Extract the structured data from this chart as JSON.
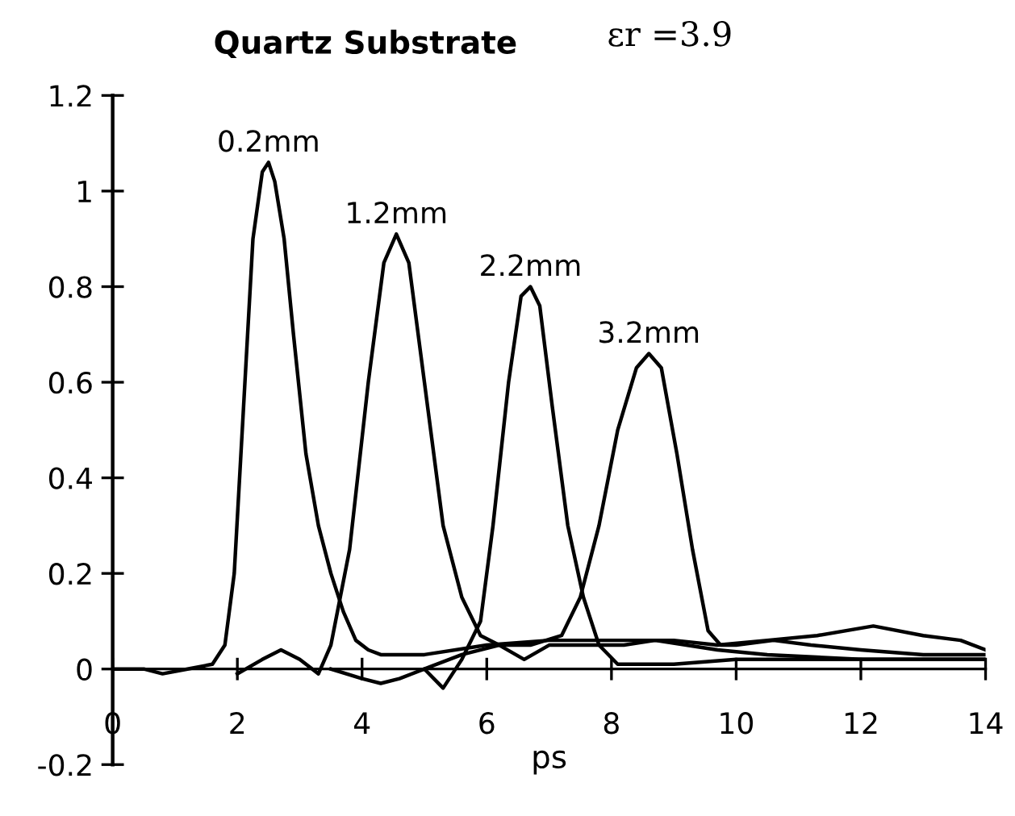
{
  "chart_data": {
    "type": "line",
    "title": "Quartz Substrate",
    "subtitle": "εr =3.9",
    "xlabel": "ps",
    "xlim": [
      0,
      14
    ],
    "ylim": [
      -0.2,
      1.2
    ],
    "xticks": [
      0,
      2,
      4,
      6,
      8,
      10,
      12,
      14
    ],
    "yticks": [
      -0.2,
      0,
      0.2,
      0.4,
      0.6,
      0.8,
      1,
      1.2
    ],
    "grid": false,
    "legend": false,
    "marker": "none",
    "line_style": "solid",
    "series": [
      {
        "name": "0.2mm",
        "color": "#000000",
        "x": [
          0,
          0.5,
          0.8,
          1.2,
          1.6,
          1.8,
          1.95,
          2.1,
          2.25,
          2.4,
          2.5,
          2.6,
          2.75,
          2.9,
          3.1,
          3.3,
          3.5,
          3.7,
          3.9,
          4.1,
          4.3,
          5,
          6,
          7,
          8,
          9,
          9.7,
          10.5,
          11.3,
          12.2,
          13,
          13.6,
          14
        ],
        "values": [
          0,
          0,
          -0.01,
          0,
          0.01,
          0.05,
          0.2,
          0.55,
          0.9,
          1.04,
          1.06,
          1.02,
          0.9,
          0.7,
          0.45,
          0.3,
          0.2,
          0.12,
          0.06,
          0.04,
          0.03,
          0.03,
          0.05,
          0.06,
          0.06,
          0.06,
          0.05,
          0.06,
          0.07,
          0.09,
          0.07,
          0.06,
          0.04
        ]
      },
      {
        "name": "1.2mm",
        "color": "#000000",
        "x": [
          2,
          2.4,
          2.7,
          3.0,
          3.3,
          3.5,
          3.8,
          4.1,
          4.35,
          4.55,
          4.75,
          5.0,
          5.3,
          5.6,
          5.9,
          6.2,
          6.6,
          7.0,
          7.5,
          8.2,
          8.7,
          9.2,
          9.7,
          10.5,
          12,
          14
        ],
        "values": [
          -0.01,
          0.02,
          0.04,
          0.02,
          -0.01,
          0.05,
          0.25,
          0.6,
          0.85,
          0.91,
          0.85,
          0.6,
          0.3,
          0.15,
          0.07,
          0.05,
          0.02,
          0.05,
          0.05,
          0.05,
          0.06,
          0.05,
          0.04,
          0.03,
          0.02,
          0.02
        ]
      },
      {
        "name": "2.2mm",
        "color": "#000000",
        "x": [
          3.5,
          4,
          4.3,
          4.6,
          5,
          5.3,
          5.6,
          5.9,
          6.1,
          6.35,
          6.55,
          6.7,
          6.85,
          7.05,
          7.3,
          7.55,
          7.8,
          8.1,
          9,
          10,
          12,
          14
        ],
        "values": [
          0,
          -0.02,
          -0.03,
          -0.02,
          0,
          -0.04,
          0.02,
          0.1,
          0.3,
          0.6,
          0.78,
          0.8,
          0.76,
          0.55,
          0.3,
          0.15,
          0.05,
          0.01,
          0.01,
          0.02,
          0.02,
          0.02
        ]
      },
      {
        "name": "3.2mm",
        "color": "#000000",
        "x": [
          5,
          5.6,
          6.2,
          6.7,
          7.2,
          7.5,
          7.8,
          8.1,
          8.4,
          8.6,
          8.8,
          9.05,
          9.3,
          9.55,
          9.75,
          10,
          10.6,
          11.2,
          12,
          13,
          14
        ],
        "values": [
          0,
          0.03,
          0.05,
          0.05,
          0.07,
          0.15,
          0.3,
          0.5,
          0.63,
          0.66,
          0.63,
          0.45,
          0.25,
          0.08,
          0.05,
          0.05,
          0.06,
          0.05,
          0.04,
          0.03,
          0.03
        ]
      }
    ]
  }
}
